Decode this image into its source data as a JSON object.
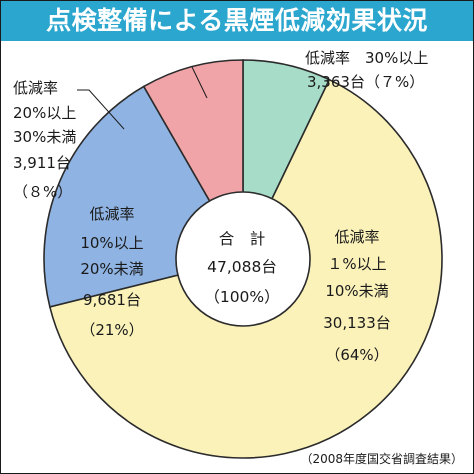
{
  "title": "点検整備による黒煙低減効果状況",
  "source": "（2008年度国交省調査結果）",
  "colors": {
    "title_bg": "#2ba6ce",
    "segment_high": "#a6dcc8",
    "segment_20_30": "#f0a4a8",
    "segment_10_20": "#8fb3e2",
    "segment_1_10": "#fbf2ba",
    "outline": "#2b2b2b"
  },
  "chart_data": {
    "type": "pie",
    "donut": true,
    "start_angle_deg": 0,
    "direction": "clockwise",
    "center_label": [
      "合　計",
      "47,088台",
      "（100%）"
    ],
    "series": [
      {
        "category": "低減率 30%以上",
        "value": 3363,
        "percent": 7,
        "color_key": "segment_high",
        "label_lines": [
          "低減率　30%以上",
          "3,363台（７%）"
        ]
      },
      {
        "category": "低減率 1%以上10%未満",
        "value": 30133,
        "percent": 64,
        "color_key": "segment_1_10",
        "label_lines": [
          "低減率",
          "１%以上",
          "10%未満",
          "30,133台",
          "（64%）"
        ]
      },
      {
        "category": "低減率 10%以上20%未満",
        "value": 9681,
        "percent": 21,
        "color_key": "segment_10_20",
        "label_lines": [
          "低減率",
          "10%以上",
          "20%未満",
          "9,681台",
          "（21%）"
        ]
      },
      {
        "category": "低減率 20%以上30%未満",
        "value": 3911,
        "percent": 8,
        "color_key": "segment_20_30",
        "label_lines": [
          "低減率",
          "20%以上",
          "30%未満",
          "3,911台",
          "（８%）"
        ]
      }
    ]
  }
}
